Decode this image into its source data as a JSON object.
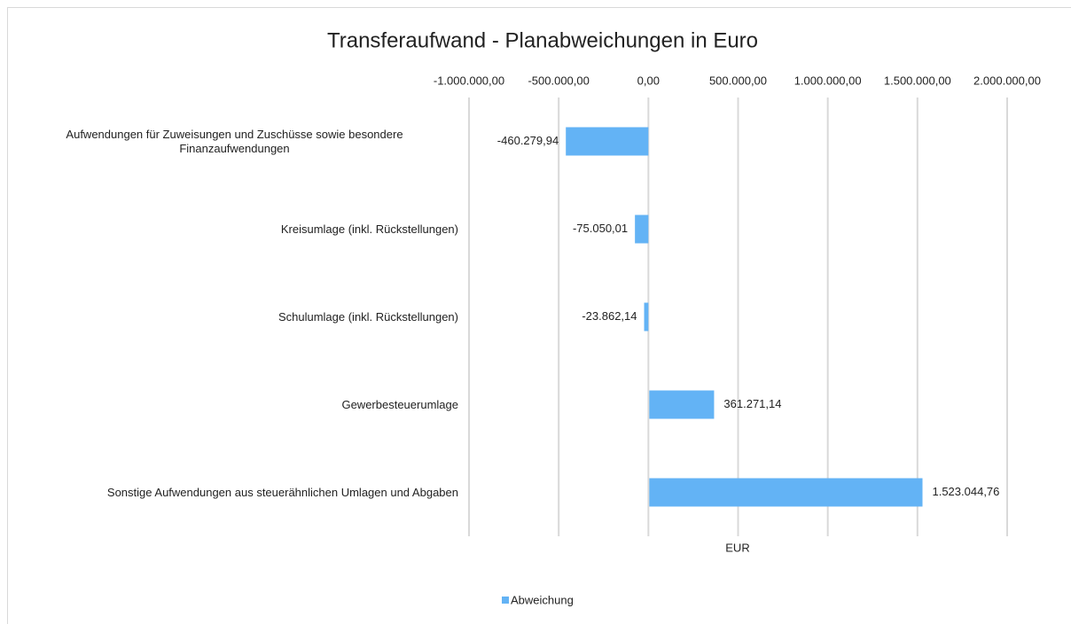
{
  "chart_data": {
    "type": "bar",
    "orientation": "horizontal",
    "title": "Transferaufwand - Planabweichungen in Euro",
    "x_label": "EUR",
    "categories": [
      "Aufwendungen für Zuweisungen und Zuschüsse sowie besondere Finanzaufwendungen",
      "Kreisumlage (inkl. Rückstellungen)",
      "Schulumlage (inkl. Rückstellungen)",
      "Gewerbesteuerumlage",
      "Sonstige Aufwendungen aus steuerähnlichen Umlagen und Abgaben"
    ],
    "series": [
      {
        "name": "Abweichung",
        "color": "#63b3f5",
        "values": [
          -460279.94,
          -75050.01,
          -23862.14,
          361271.14,
          1523044.76
        ],
        "value_labels": [
          "-460.279,94",
          "-75.050,01",
          "-23.862,14",
          "361.271,14",
          "1.523.044,76"
        ]
      }
    ],
    "xlim": [
      -1000000,
      2000000
    ],
    "xticks": [
      {
        "value": -1000000,
        "label": "-1.000.000,00"
      },
      {
        "value": -500000,
        "label": "-500.000,00"
      },
      {
        "value": 0,
        "label": "0,00"
      },
      {
        "value": 500000,
        "label": "500.000,00"
      },
      {
        "value": 1000000,
        "label": "1.000.000,00"
      },
      {
        "value": 1500000,
        "label": "1.500.000,00"
      },
      {
        "value": 2000000,
        "label": "2.000.000,00"
      }
    ],
    "grid": true,
    "legend": "bottom"
  }
}
